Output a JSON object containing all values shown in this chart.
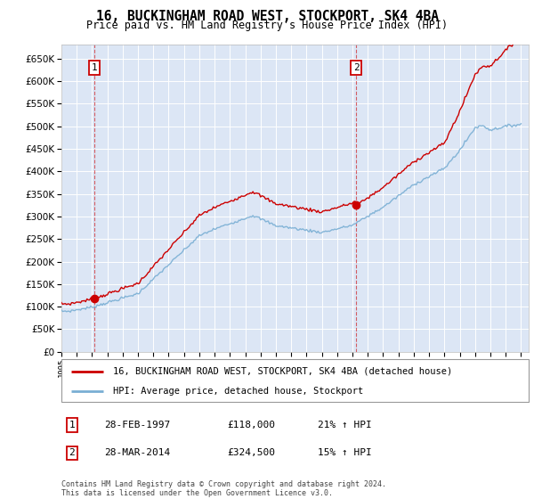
{
  "title": "16, BUCKINGHAM ROAD WEST, STOCKPORT, SK4 4BA",
  "subtitle": "Price paid vs. HM Land Registry's House Price Index (HPI)",
  "legend_line1": "16, BUCKINGHAM ROAD WEST, STOCKPORT, SK4 4BA (detached house)",
  "legend_line2": "HPI: Average price, detached house, Stockport",
  "ann1": {
    "label": "1",
    "date": "28-FEB-1997",
    "price": "£118,000",
    "pct": "21% ↑ HPI"
  },
  "ann2": {
    "label": "2",
    "date": "28-MAR-2014",
    "price": "£324,500",
    "pct": "15% ↑ HPI"
  },
  "copyright": "Contains HM Land Registry data © Crown copyright and database right 2024.\nThis data is licensed under the Open Government Licence v3.0.",
  "hpi_color": "#7aafd4",
  "price_color": "#cc0000",
  "dot_color": "#cc0000",
  "bg_color": "#dce6f5",
  "ylim": [
    0,
    680000
  ],
  "yticks": [
    0,
    50000,
    100000,
    150000,
    200000,
    250000,
    300000,
    350000,
    400000,
    450000,
    500000,
    550000,
    600000,
    650000
  ],
  "sale1_x": 1997.16,
  "sale1_y": 118000,
  "sale2_x": 2014.24,
  "sale2_y": 324500,
  "xmin": 1995,
  "xmax": 2025.5
}
